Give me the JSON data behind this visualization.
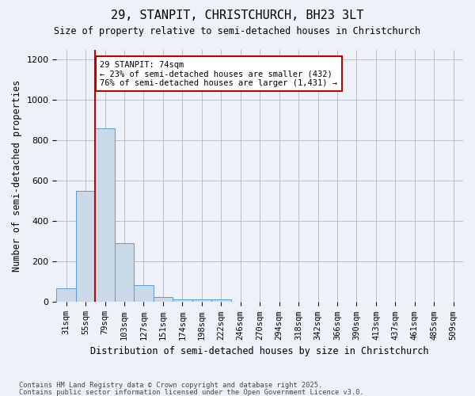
{
  "title1": "29, STANPIT, CHRISTCHURCH, BH23 3LT",
  "title2": "Size of property relative to semi-detached houses in Christchurch",
  "xlabel": "Distribution of semi-detached houses by size in Christchurch",
  "ylabel": "Number of semi-detached properties",
  "bins": [
    "31sqm",
    "55sqm",
    "79sqm",
    "103sqm",
    "127sqm",
    "151sqm",
    "174sqm",
    "198sqm",
    "222sqm",
    "246sqm",
    "270sqm",
    "294sqm",
    "318sqm",
    "342sqm",
    "366sqm",
    "390sqm",
    "413sqm",
    "437sqm",
    "461sqm",
    "485sqm",
    "509sqm"
  ],
  "values": [
    70,
    550,
    860,
    290,
    85,
    27,
    15,
    13,
    12,
    0,
    0,
    0,
    0,
    0,
    0,
    0,
    0,
    0,
    0,
    0,
    0
  ],
  "bar_color": "#c9d9e8",
  "bar_edge_color": "#5b9bd5",
  "vline_x": 1.5,
  "vline_color": "#c00000",
  "annotation_text": "29 STANPIT: 74sqm\n← 23% of semi-detached houses are smaller (432)\n76% of semi-detached houses are larger (1,431) →",
  "annotation_box_color": "#c00000",
  "footer1": "Contains HM Land Registry data © Crown copyright and database right 2025.",
  "footer2": "Contains public sector information licensed under the Open Government Licence v3.0.",
  "ylim": [
    0,
    1250
  ],
  "background_color": "#eef2f8"
}
